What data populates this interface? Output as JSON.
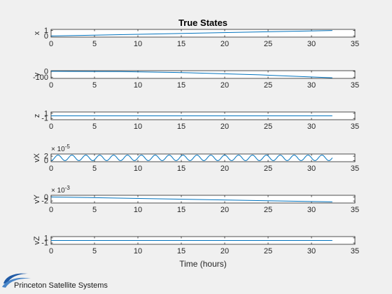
{
  "figure": {
    "background": "#f0f0f0",
    "axes_background": "#ffffff",
    "line_color": "#0072bd",
    "axis_color": "#262626"
  },
  "logo": {
    "text": "Princeton Satellite Systems",
    "icon": "swoosh-logo-icon",
    "color": "#1f5aa6"
  },
  "chart_data": {
    "type": "line",
    "title": "True States",
    "xlabel": "Time (hours)",
    "xlim": [
      0,
      35
    ],
    "xticks": [
      "0",
      "5",
      "10",
      "15",
      "20",
      "25",
      "30",
      "35"
    ],
    "grid": false,
    "subplots": [
      {
        "ylabel": "x",
        "ylim": [
          -0.2,
          1.2
        ],
        "yticks": [
          {
            "v": 0,
            "t": "0"
          },
          {
            "v": 1,
            "t": "1"
          }
        ],
        "exponent": "",
        "series": [
          {
            "x": [
              0,
              32.4
            ],
            "y": [
              0,
              1
            ]
          }
        ]
      },
      {
        "ylabel": "y",
        "ylim": [
          -120,
          10
        ],
        "yticks": [
          {
            "v": -100,
            "t": "-100"
          },
          {
            "v": 0,
            "t": "0"
          }
        ],
        "exponent": "",
        "series": [
          {
            "x": [
              0,
              8,
              16,
              24,
              32.4
            ],
            "y": [
              0,
              -5,
              -25,
              -60,
              -110
            ]
          }
        ]
      },
      {
        "ylabel": "z",
        "ylim": [
          -1.5,
          1.5
        ],
        "yticks": [
          {
            "v": -1,
            "t": "-1"
          },
          {
            "v": 1,
            "t": "1"
          }
        ],
        "exponent": "",
        "series": [
          {
            "x": [
              0,
              32.4
            ],
            "y": [
              0,
              0
            ]
          }
        ]
      },
      {
        "ylabel": "vX",
        "ylim": [
          -0.5,
          3
        ],
        "yticks": [
          {
            "v": 0,
            "t": "0"
          },
          {
            "v": 2,
            "t": "2"
          }
        ],
        "exponent": "× 10^-5",
        "exponent_base": "× 10",
        "exponent_power": "-5",
        "series": [
          {
            "wave": {
              "x_start": 0,
              "x_end": 32.4,
              "offset": 1.25,
              "amplitude": 1.25,
              "period": 1.6
            }
          }
        ]
      },
      {
        "ylabel": "vY",
        "ylim": [
          -3,
          0.8
        ],
        "yticks": [
          {
            "v": -2,
            "t": "-2"
          },
          {
            "v": 0,
            "t": "0"
          }
        ],
        "exponent": "× 10^-3",
        "exponent_base": "× 10",
        "exponent_power": "-3",
        "series": [
          {
            "x": [
              0,
              32.4
            ],
            "y": [
              0,
              -2.45
            ]
          }
        ]
      },
      {
        "ylabel": "vZ",
        "ylim": [
          -1.5,
          1.5
        ],
        "yticks": [
          {
            "v": -1,
            "t": "-1"
          },
          {
            "v": 1,
            "t": "1"
          }
        ],
        "exponent": "",
        "series": [
          {
            "x": [
              0,
              32.4
            ],
            "y": [
              0,
              0
            ]
          }
        ]
      }
    ]
  }
}
